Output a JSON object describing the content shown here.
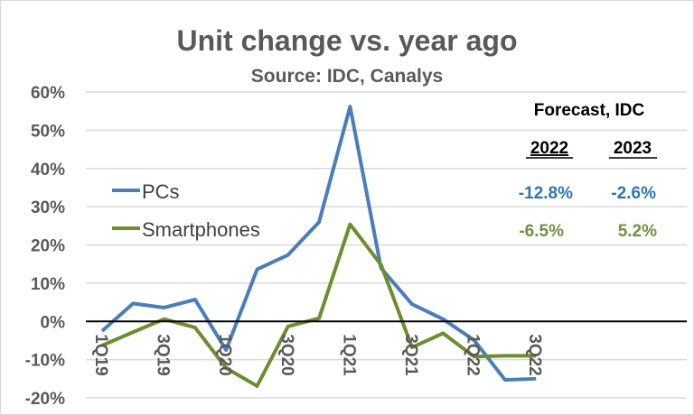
{
  "chart_data": {
    "type": "line",
    "title": "Unit change vs. year ago",
    "subtitle": "Source: IDC, Canalys",
    "categories": [
      "1Q19",
      "2Q19",
      "3Q19",
      "4Q19",
      "1Q20",
      "2Q20",
      "3Q20",
      "4Q20",
      "1Q21",
      "2Q21",
      "3Q21",
      "4Q21",
      "1Q22",
      "2Q22",
      "3Q22"
    ],
    "tick_labels": [
      "1Q19",
      "3Q19",
      "1Q20",
      "3Q20",
      "1Q21",
      "3Q21",
      "1Q22",
      "3Q22"
    ],
    "ylim": [
      -20,
      60
    ],
    "yticks": [
      "60%",
      "50%",
      "40%",
      "30%",
      "20%",
      "10%",
      "0%",
      "-10%",
      "-20%"
    ],
    "grid": true,
    "legend_placement": "left",
    "series": [
      {
        "name": "PCs",
        "color": "#4a7ebb",
        "values": [
          -2.5,
          4.7,
          3.6,
          5.7,
          -7.5,
          13.6,
          17.4,
          26.0,
          56.2,
          13.9,
          4.5,
          0.6,
          -4.9,
          -15.3,
          -15.0
        ]
      },
      {
        "name": "Smartphones",
        "color": "#6b8e2e",
        "values": [
          -6.3,
          -2.8,
          0.6,
          -1.6,
          -12.2,
          -16.9,
          -1.3,
          0.8,
          25.4,
          14.8,
          -6.8,
          -3.1,
          -9.2,
          -9.0,
          -9.0
        ]
      }
    ],
    "annotation": {
      "title": "Forecast, IDC",
      "years": [
        "2022",
        "2023"
      ],
      "rows": [
        {
          "series": "PCs",
          "color": "#2e75b6",
          "values": [
            "-12.8%",
            "-2.6%"
          ]
        },
        {
          "series": "Smartphones",
          "color": "#70923a",
          "values": [
            "-6.5%",
            "5.2%"
          ]
        }
      ]
    }
  }
}
